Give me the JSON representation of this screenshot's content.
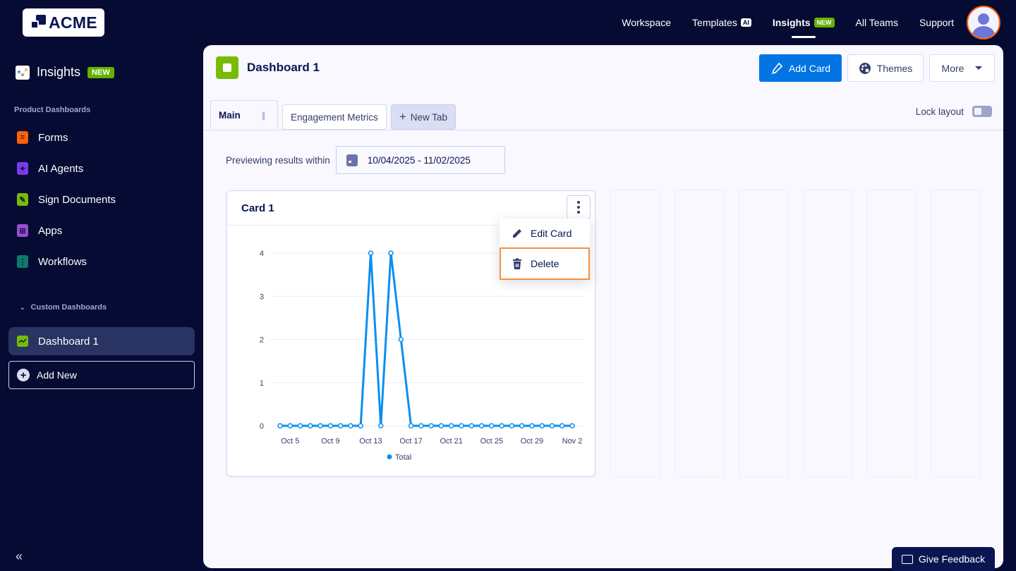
{
  "brand": {
    "logo_text": "ACME"
  },
  "topnav": {
    "items": [
      {
        "label": "Workspace"
      },
      {
        "label": "Templates",
        "badge": "AI"
      },
      {
        "label": "Insights",
        "badge": "NEW",
        "active": true
      },
      {
        "label": "All Teams"
      },
      {
        "label": "Support"
      }
    ]
  },
  "sidebar": {
    "title": "Insights",
    "title_badge": "NEW",
    "product_section": "Product Dashboards",
    "product_items": [
      {
        "label": "Forms",
        "icon": "forms-icon",
        "color": "#ff6100"
      },
      {
        "label": "AI Agents",
        "icon": "ai-agents-icon",
        "color": "#7c3aed"
      },
      {
        "label": "Sign Documents",
        "icon": "sign-documents-icon",
        "color": "#78bb07"
      },
      {
        "label": "Apps",
        "icon": "apps-icon",
        "color": "#9c4dd3"
      },
      {
        "label": "Workflows",
        "icon": "workflows-icon",
        "color": "#0e7a6b"
      }
    ],
    "custom_section": "Custom Dashboards",
    "custom_items": [
      {
        "label": "Dashboard 1",
        "active": true
      }
    ],
    "add_new": "Add New",
    "collapse_glyph": "«"
  },
  "dashboard": {
    "title": "Dashboard 1",
    "actions": {
      "add_card": "Add Card",
      "themes": "Themes",
      "more": "More"
    },
    "tabs": [
      {
        "label": "Main",
        "active": true
      },
      {
        "label": "Engagement Metrics"
      }
    ],
    "new_tab": "New Tab",
    "lock_layout": "Lock layout",
    "lock_layout_on": false,
    "preview_label": "Previewing results within",
    "date_range": "10/04/2025 - 11/02/2025"
  },
  "card": {
    "title": "Card 1",
    "menu": [
      {
        "label": "Edit Card",
        "icon": "pencil-icon"
      },
      {
        "label": "Delete",
        "icon": "trash-icon",
        "focused": true
      }
    ]
  },
  "chart_data": {
    "type": "line",
    "title": "Card 1",
    "xlabel": "",
    "ylabel": "",
    "ylim": [
      0,
      4
    ],
    "yticks": [
      0,
      1,
      2,
      3,
      4
    ],
    "grid": true,
    "legend_position": "bottom",
    "x": [
      "Oct 4",
      "Oct 5",
      "Oct 6",
      "Oct 7",
      "Oct 8",
      "Oct 9",
      "Oct 10",
      "Oct 11",
      "Oct 12",
      "Oct 13",
      "Oct 14",
      "Oct 15",
      "Oct 16",
      "Oct 17",
      "Oct 18",
      "Oct 19",
      "Oct 20",
      "Oct 21",
      "Oct 22",
      "Oct 23",
      "Oct 24",
      "Oct 25",
      "Oct 26",
      "Oct 27",
      "Oct 28",
      "Oct 29",
      "Oct 30",
      "Oct 31",
      "Nov 1",
      "Nov 2"
    ],
    "xtick_labels": [
      "Oct 5",
      "Oct 9",
      "Oct 13",
      "Oct 17",
      "Oct 21",
      "Oct 25",
      "Oct 29",
      "Nov 2"
    ],
    "series": [
      {
        "name": "Total",
        "color": "#0a8fef",
        "values": [
          0,
          0,
          0,
          0,
          0,
          0,
          0,
          0,
          0,
          4,
          0,
          4,
          2,
          0,
          0,
          0,
          0,
          0,
          0,
          0,
          0,
          0,
          0,
          0,
          0,
          0,
          0,
          0,
          0,
          0
        ]
      }
    ]
  },
  "feedback": {
    "label": "Give Feedback"
  },
  "colors": {
    "background": "#060b33",
    "panel": "#f8f8fe",
    "primary": "#0075e3",
    "new_badge": "#64b200",
    "focus_outline": "#f6903e"
  }
}
